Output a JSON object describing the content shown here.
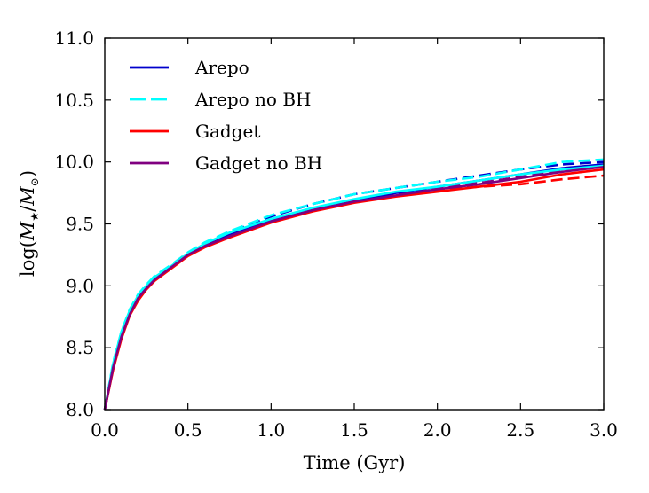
{
  "chart_data": {
    "type": "line",
    "title": "",
    "xlabel": "Time (Gyr)",
    "ylabel": "log(M★/M⊙)",
    "ylabel_parts": {
      "prefix": "log(",
      "m1": "M",
      "sub1": "★",
      "slash": "/",
      "m2": "M",
      "sub2": "⊙",
      "suffix": ")"
    },
    "xlim": [
      0.0,
      3.0
    ],
    "ylim": [
      8.0,
      11.0
    ],
    "xticks": [
      0.0,
      0.5,
      1.0,
      1.5,
      2.0,
      2.5,
      3.0
    ],
    "xtick_labels": [
      "0.0",
      "0.5",
      "1.0",
      "1.5",
      "2.0",
      "2.5",
      "3.0"
    ],
    "yticks": [
      8.0,
      8.5,
      9.0,
      9.5,
      10.0,
      10.5,
      11.0
    ],
    "ytick_labels": [
      "8.0",
      "8.5",
      "9.0",
      "9.5",
      "10.0",
      "10.5",
      "11.0"
    ],
    "grid": false,
    "legend_position": "top-left",
    "series": [
      {
        "name": "Arepo",
        "color": "#0000cc",
        "legend_style": "solid",
        "variants": [
          {
            "style": "solid",
            "x": [
              0.0,
              0.05,
              0.1,
              0.15,
              0.2,
              0.25,
              0.3,
              0.4,
              0.5,
              0.6,
              0.75,
              1.0,
              1.25,
              1.5,
              1.75,
              2.0,
              2.25,
              2.5,
              2.75,
              3.0
            ],
            "y": [
              8.0,
              8.35,
              8.6,
              8.78,
              8.9,
              8.99,
              9.06,
              9.15,
              9.25,
              9.32,
              9.41,
              9.53,
              9.62,
              9.69,
              9.75,
              9.8,
              9.85,
              9.9,
              9.95,
              9.98
            ]
          },
          {
            "style": "dashed",
            "x": [
              0.0,
              0.05,
              0.1,
              0.15,
              0.2,
              0.25,
              0.3,
              0.4,
              0.5,
              0.6,
              0.75,
              1.0,
              1.25,
              1.5,
              1.75,
              2.0,
              2.25,
              2.5,
              2.75,
              3.0
            ],
            "y": [
              8.0,
              8.36,
              8.62,
              8.8,
              8.92,
              9.0,
              9.07,
              9.16,
              9.26,
              9.34,
              9.43,
              9.56,
              9.66,
              9.74,
              9.79,
              9.84,
              9.89,
              9.94,
              9.98,
              10.0
            ]
          }
        ]
      },
      {
        "name": "Arepo no BH",
        "color": "#00ffff",
        "legend_style": "dashed",
        "variants": [
          {
            "style": "solid",
            "x": [
              0.0,
              0.05,
              0.1,
              0.15,
              0.2,
              0.25,
              0.3,
              0.4,
              0.5,
              0.6,
              0.75,
              1.0,
              1.25,
              1.5,
              1.75,
              2.0,
              2.25,
              2.5,
              2.75,
              3.0
            ],
            "y": [
              8.0,
              8.37,
              8.63,
              8.8,
              8.92,
              9.0,
              9.07,
              9.16,
              9.26,
              9.34,
              9.43,
              9.54,
              9.63,
              9.7,
              9.76,
              9.8,
              9.85,
              9.9,
              9.94,
              9.97
            ]
          },
          {
            "style": "dashed",
            "x": [
              0.0,
              0.05,
              0.1,
              0.15,
              0.2,
              0.25,
              0.3,
              0.4,
              0.5,
              0.6,
              0.75,
              1.0,
              1.25,
              1.5,
              1.75,
              2.0,
              2.25,
              2.5,
              2.75,
              3.0
            ],
            "y": [
              8.0,
              8.38,
              8.63,
              8.81,
              8.93,
              9.01,
              9.08,
              9.17,
              9.27,
              9.35,
              9.44,
              9.57,
              9.66,
              9.74,
              9.79,
              9.84,
              9.88,
              9.94,
              10.0,
              10.02
            ]
          }
        ]
      },
      {
        "name": "Gadget",
        "color": "#ff0000",
        "legend_style": "solid",
        "variants": [
          {
            "style": "solid",
            "x": [
              0.0,
              0.05,
              0.1,
              0.15,
              0.2,
              0.25,
              0.3,
              0.4,
              0.5,
              0.6,
              0.75,
              1.0,
              1.25,
              1.5,
              1.75,
              2.0,
              2.25,
              2.5,
              2.75,
              3.0
            ],
            "y": [
              8.0,
              8.32,
              8.57,
              8.76,
              8.88,
              8.97,
              9.04,
              9.14,
              9.24,
              9.31,
              9.39,
              9.51,
              9.6,
              9.67,
              9.72,
              9.76,
              9.8,
              9.84,
              9.9,
              9.94
            ]
          },
          {
            "style": "dashed",
            "x": [
              0.0,
              0.05,
              0.1,
              0.15,
              0.2,
              0.25,
              0.3,
              0.4,
              0.5,
              0.6,
              0.75,
              1.0,
              1.25,
              1.5,
              1.75,
              2.0,
              2.25,
              2.5,
              2.75,
              3.0
            ],
            "y": [
              8.0,
              8.33,
              8.58,
              8.77,
              8.89,
              8.98,
              9.05,
              9.15,
              9.25,
              9.32,
              9.4,
              9.52,
              9.61,
              9.68,
              9.73,
              9.77,
              9.8,
              9.82,
              9.86,
              9.89
            ]
          }
        ]
      },
      {
        "name": "Gadget no BH",
        "color": "#800080",
        "legend_style": "solid",
        "variants": [
          {
            "style": "solid",
            "x": [
              0.0,
              0.05,
              0.1,
              0.15,
              0.2,
              0.25,
              0.3,
              0.4,
              0.5,
              0.6,
              0.75,
              1.0,
              1.25,
              1.5,
              1.75,
              2.0,
              2.25,
              2.5,
              2.75,
              3.0
            ],
            "y": [
              8.0,
              8.34,
              8.59,
              8.77,
              8.9,
              8.98,
              9.05,
              9.15,
              9.25,
              9.32,
              9.4,
              9.52,
              9.61,
              9.68,
              9.73,
              9.78,
              9.82,
              9.87,
              9.92,
              9.96
            ]
          },
          {
            "style": "dashed",
            "x": [
              0.0,
              0.05,
              0.1,
              0.15,
              0.2,
              0.25,
              0.3,
              0.4,
              0.5,
              0.6,
              0.75,
              1.0,
              1.25,
              1.5,
              1.75,
              2.0,
              2.25,
              2.5,
              2.75,
              3.0
            ],
            "y": [
              8.0,
              8.35,
              8.6,
              8.78,
              8.91,
              8.99,
              9.06,
              9.16,
              9.26,
              9.33,
              9.41,
              9.53,
              9.62,
              9.69,
              9.74,
              9.79,
              9.83,
              9.88,
              9.93,
              9.97
            ]
          }
        ]
      }
    ]
  }
}
